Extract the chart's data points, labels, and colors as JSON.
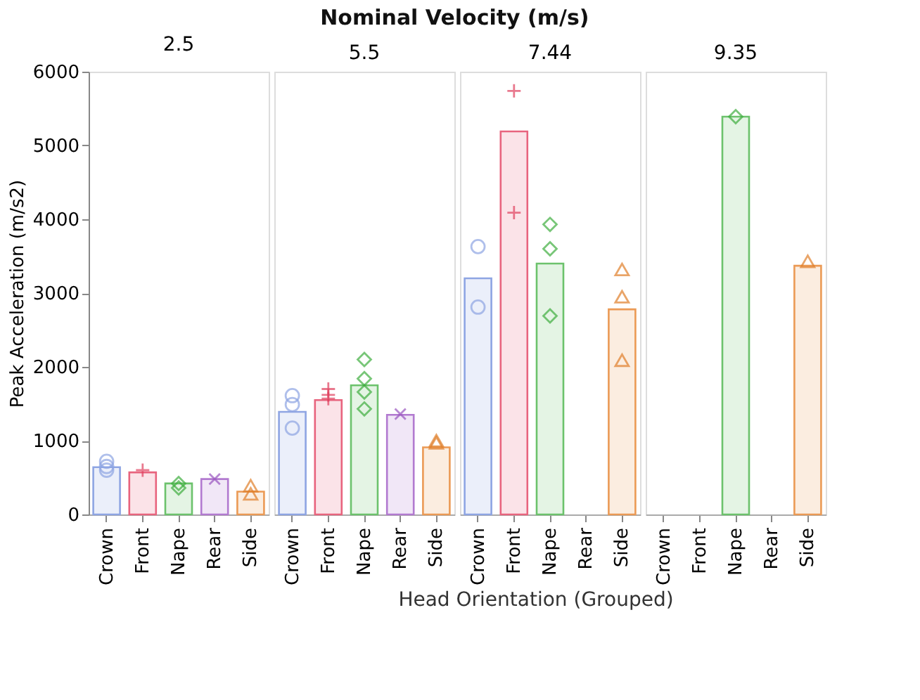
{
  "chart_data": [
    {
      "type": "bar",
      "subtitle": "2.5",
      "ylabel": "Peak Acceleration (m/s2)",
      "categories": [
        "Crown",
        "Front",
        "Nape",
        "Rear",
        "Side"
      ],
      "ylim": [
        0,
        6000
      ],
      "yticks": [
        0,
        1000,
        2000,
        3000,
        4000,
        5000,
        6000
      ],
      "grid": false,
      "series": [
        {
          "values": [
            640,
            570,
            420,
            480,
            310
          ],
          "colors": [
            "#8ea5e3",
            "#e8647e",
            "#6cc26c",
            "#b27ad0",
            "#eb9a55"
          ]
        },
        {
          "type": "scatter",
          "marker": "circle",
          "color": "#8ea5e3",
          "x": [
            "Crown",
            "Crown",
            "Crown"
          ],
          "values": [
            720,
            650,
            600
          ]
        },
        {
          "type": "scatter",
          "marker": "cross",
          "color": "#e0415f",
          "x": [
            "Front"
          ],
          "values": [
            600
          ]
        },
        {
          "type": "scatter",
          "marker": "diamond",
          "color": "#3fae3f",
          "x": [
            "Nape",
            "Nape"
          ],
          "values": [
            420,
            360
          ]
        },
        {
          "type": "scatter",
          "marker": "x",
          "color": "#9a55c0",
          "x": [
            "Rear"
          ],
          "values": [
            480
          ]
        },
        {
          "type": "scatter",
          "marker": "triangle",
          "color": "#e07f2a",
          "x": [
            "Side",
            "Side"
          ],
          "values": [
            390,
            280
          ]
        }
      ]
    },
    {
      "type": "bar",
      "title": "Nominal Velocity (m/s)",
      "subtitle": "5.5",
      "tick_labels": "x",
      "categories": [
        "Crown",
        "Front",
        "Nape",
        "Rear",
        "Side"
      ],
      "ylim": [
        0,
        6000
      ],
      "yticks": [
        0,
        1000,
        2000,
        3000,
        4000,
        5000,
        6000
      ],
      "grid": false,
      "series": [
        {
          "values": [
            1390,
            1550,
            1750,
            1350,
            910
          ],
          "colors": [
            "#8ea5e3",
            "#e8647e",
            "#6cc26c",
            "#b27ad0",
            "#eb9a55"
          ]
        },
        {
          "type": "scatter",
          "marker": "circle",
          "color": "#8ea5e3",
          "x": [
            "Crown",
            "Crown",
            "Crown"
          ],
          "values": [
            1610,
            1490,
            1170
          ]
        },
        {
          "type": "scatter",
          "marker": "cross",
          "color": "#e0415f",
          "x": [
            "Front",
            "Front",
            "Front"
          ],
          "values": [
            1700,
            1620,
            1570
          ]
        },
        {
          "type": "scatter",
          "marker": "diamond",
          "color": "#3fae3f",
          "x": [
            "Nape",
            "Nape",
            "Nape",
            "Nape"
          ],
          "values": [
            2100,
            1840,
            1660,
            1430
          ]
        },
        {
          "type": "scatter",
          "marker": "x",
          "color": "#9a55c0",
          "x": [
            "Rear"
          ],
          "values": [
            1360
          ]
        },
        {
          "type": "scatter",
          "marker": "triangle",
          "color": "#e07f2a",
          "x": [
            "Side",
            "Side"
          ],
          "values": [
            1000,
            970
          ]
        }
      ]
    },
    {
      "type": "bar",
      "subtitle": "7.44",
      "xlabel": "Head Orientation (Grouped)",
      "tick_labels": "x",
      "categories": [
        "Crown",
        "Front",
        "Nape",
        "Rear",
        "Side"
      ],
      "ylim": [
        0,
        6000
      ],
      "yticks": [
        0,
        1000,
        2000,
        3000,
        4000,
        5000,
        6000
      ],
      "grid": false,
      "series": [
        {
          "values": [
            3200,
            5190,
            3400,
            null,
            2780
          ],
          "colors": [
            "#8ea5e3",
            "#e8647e",
            "#6cc26c",
            "#b27ad0",
            "#eb9a55"
          ]
        },
        {
          "type": "scatter",
          "marker": "circle",
          "color": "#8ea5e3",
          "x": [
            "Crown",
            "Crown"
          ],
          "values": [
            3630,
            2810
          ]
        },
        {
          "type": "scatter",
          "marker": "cross",
          "color": "#e0415f",
          "x": [
            "Front",
            "Front"
          ],
          "values": [
            5740,
            4090
          ]
        },
        {
          "type": "scatter",
          "marker": "diamond",
          "color": "#3fae3f",
          "x": [
            "Nape",
            "Nape",
            "Nape"
          ],
          "values": [
            3930,
            3600,
            2690
          ]
        },
        {
          "type": "scatter",
          "marker": "triangle",
          "color": "#e07f2a",
          "x": [
            "Side",
            "Side",
            "Side"
          ],
          "values": [
            3320,
            2950,
            2090
          ]
        }
      ]
    },
    {
      "type": "bar",
      "subtitle": "9.35",
      "tick_labels": "x",
      "categories": [
        "Crown",
        "Front",
        "Nape",
        "Rear",
        "Side"
      ],
      "ylim": [
        0,
        6000
      ],
      "yticks": [
        0,
        1000,
        2000,
        3000,
        4000,
        5000,
        6000
      ],
      "grid": false,
      "series": [
        {
          "values": [
            null,
            null,
            5390,
            null,
            3370
          ],
          "colors": [
            "#8ea5e3",
            "#e8647e",
            "#6cc26c",
            "#b27ad0",
            "#eb9a55"
          ]
        },
        {
          "type": "scatter",
          "marker": "diamond",
          "color": "#3fae3f",
          "x": [
            "Nape"
          ],
          "values": [
            5390
          ]
        },
        {
          "type": "scatter",
          "marker": "triangle",
          "color": "#e07f2a",
          "x": [
            "Side"
          ],
          "values": [
            3430
          ]
        }
      ]
    }
  ]
}
